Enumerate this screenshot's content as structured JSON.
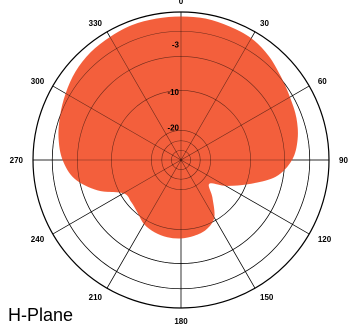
{
  "chart_data": {
    "type": "polar-area",
    "title": "H-Plane",
    "angle_labels": [
      "0",
      "30",
      "60",
      "90",
      "120",
      "150",
      "180",
      "210",
      "240",
      "270",
      "300",
      "330"
    ],
    "angle_values": [
      0,
      30,
      60,
      90,
      120,
      150,
      180,
      210,
      240,
      270,
      300,
      330
    ],
    "ring_labels": [
      "-3",
      "-10",
      "-20"
    ],
    "series": [
      {
        "angles_deg": [
          0,
          10,
          20,
          30,
          40,
          50,
          60,
          70,
          80,
          90,
          100,
          110,
          120,
          130,
          140,
          150,
          160,
          170,
          180,
          190,
          200,
          210,
          220,
          230,
          240,
          250,
          260,
          270,
          280,
          290,
          300,
          310,
          320,
          330,
          340,
          350
        ],
        "radius_fraction": [
          0.97,
          0.97,
          0.96,
          0.95,
          0.92,
          0.88,
          0.85,
          0.83,
          0.8,
          0.75,
          0.65,
          0.48,
          0.35,
          0.25,
          0.33,
          0.45,
          0.5,
          0.52,
          0.53,
          0.53,
          0.52,
          0.5,
          0.46,
          0.44,
          0.45,
          0.6,
          0.73,
          0.8,
          0.84,
          0.87,
          0.9,
          0.93,
          0.95,
          0.96,
          0.97,
          0.97
        ],
        "color": "#f35f3c"
      }
    ],
    "grid": true,
    "colors": {
      "fill": "#f35f3c",
      "grid": "#000000"
    }
  }
}
